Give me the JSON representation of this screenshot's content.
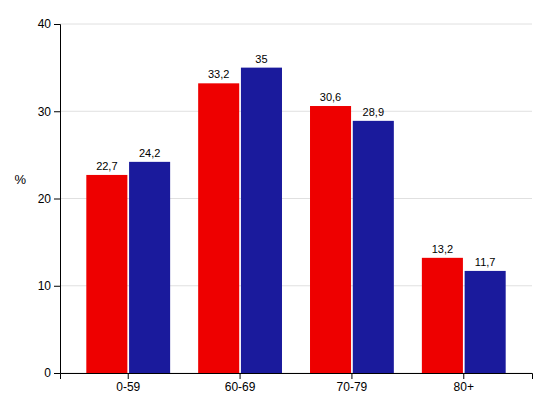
{
  "chart_data": {
    "type": "bar",
    "ylabel": "%",
    "categories": [
      "0-59",
      "60-69",
      "70-79",
      "80+"
    ],
    "series": [
      {
        "color": "#ee0000",
        "values": [
          22.7,
          33.2,
          30.6,
          13.2
        ],
        "value_labels": [
          "22,7",
          "33,2",
          "30,6",
          "13,2"
        ]
      },
      {
        "color": "#1a1a9c",
        "values": [
          24.2,
          35.0,
          28.9,
          11.7
        ],
        "value_labels": [
          "24,2",
          "35",
          "28,9",
          "11,7"
        ]
      }
    ],
    "ylim": [
      0,
      40
    ],
    "yticks": [
      0,
      10,
      20,
      30,
      40
    ],
    "grid": true,
    "data_labels": true
  }
}
